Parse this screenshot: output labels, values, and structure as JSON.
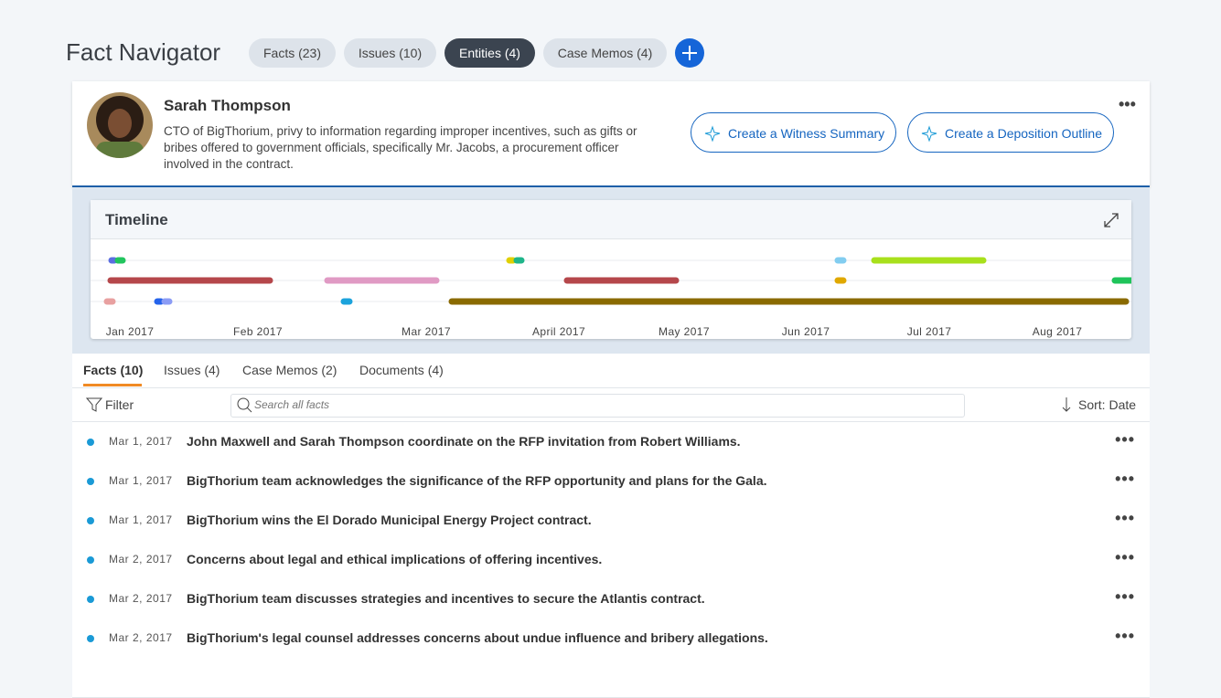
{
  "header": {
    "title": "Fact Navigator",
    "tabs": [
      "Facts (23)",
      "Issues (10)",
      "Entities (4)",
      "Case Memos (4)"
    ]
  },
  "entity": {
    "name": "Sarah Thompson",
    "description": "CTO of BigThorium, privy to information regarding improper incentives, such as gifts or bribes offered to government officials, specifically Mr. Jacobs, a procurement officer involved in the contract.",
    "actions": [
      "Create a Witness Summary",
      "Create a Deposition Outline"
    ]
  },
  "timeline": {
    "title": "Timeline",
    "months": [
      "Jan 2017",
      "Feb 2017",
      "Mar  2017",
      "April  2017",
      "May 2017",
      "Jun 2017",
      "Jul 2017",
      "Aug 2017"
    ]
  },
  "detail_tabs": [
    "Facts (10)",
    "Issues (4)",
    "Case Memos (2)",
    "Documents (4)"
  ],
  "toolbar": {
    "filter": "Filter",
    "search_placeholder": "Search all facts",
    "sort": "Sort: Date"
  },
  "facts": [
    {
      "date": "Mar 1, 2017",
      "text": "John Maxwell and Sarah Thompson coordinate on the RFP invitation from Robert Williams."
    },
    {
      "date": "Mar 1, 2017",
      "text": "BigThorium team acknowledges the significance of the RFP opportunity and plans for the Gala."
    },
    {
      "date": "Mar 1, 2017",
      "text": "BigThorium wins the El Dorado Municipal Energy Project contract."
    },
    {
      "date": "Mar 2, 2017",
      "text": "Concerns about legal and ethical implications of offering incentives."
    },
    {
      "date": "Mar 2, 2017",
      "text": "BigThorium team discusses strategies and incentives to secure the Atlantis contract."
    },
    {
      "date": "Mar 2, 2017",
      "text": "BigThorium's legal counsel addresses concerns about undue influence and bribery allegations."
    }
  ]
}
